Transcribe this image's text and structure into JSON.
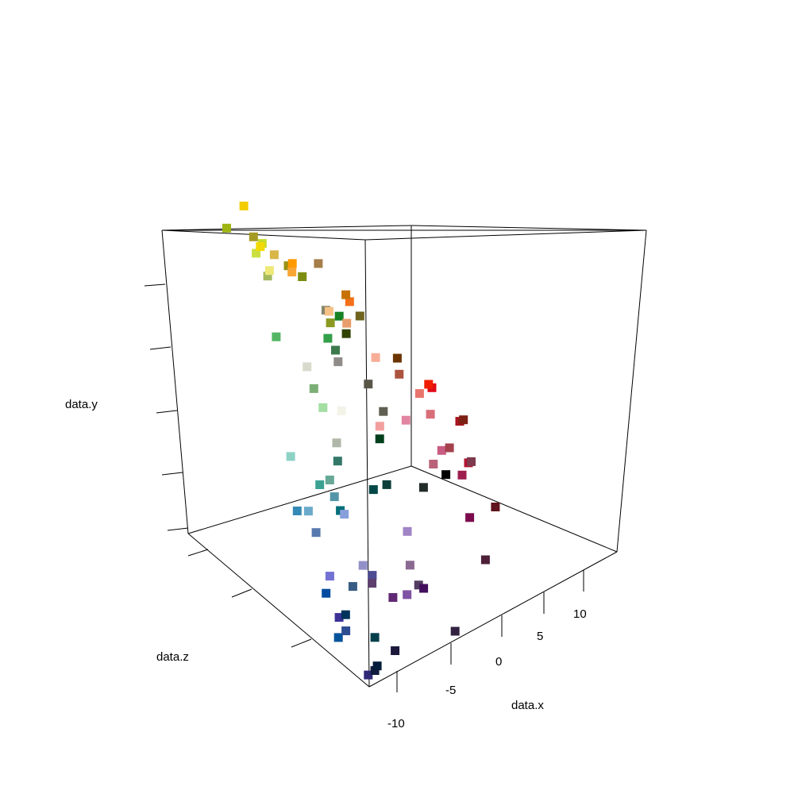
{
  "chart_data": {
    "type": "scatter",
    "projection": "3d",
    "title": "",
    "xlabel": "data.x",
    "ylabel": "data.y",
    "zlabel": "data.z",
    "x_ticks": [
      "-10",
      "-5",
      "0",
      "5",
      "10"
    ],
    "grid": false,
    "legend": "none",
    "background": "#ffffff",
    "points": [
      {
        "x": -2.6,
        "y": 14.5,
        "z": 8.8,
        "color": "#F2CC00"
      },
      {
        "x": -6.0,
        "y": 14.3,
        "z": 6.9,
        "color": "#9EB411"
      },
      {
        "x": -4.3,
        "y": 13.5,
        "z": 4.3,
        "color": "#C5DC28"
      },
      {
        "x": -4.7,
        "y": 13.0,
        "z": 4.6,
        "color": "#CADF40"
      },
      {
        "x": -2.6,
        "y": 13.0,
        "z": 7.5,
        "color": "#A59A25"
      },
      {
        "x": -2.6,
        "y": 12.6,
        "z": 6.6,
        "color": "#F2DA00"
      },
      {
        "x": -5.5,
        "y": 12.3,
        "z": 2.1,
        "color": "#A5BA60"
      },
      {
        "x": -4.4,
        "y": 12.2,
        "z": 3.2,
        "color": "#EEE978"
      },
      {
        "x": -2.0,
        "y": 12.2,
        "z": 5.5,
        "color": "#D8B648"
      },
      {
        "x": -1.3,
        "y": 11.6,
        "z": 4.5,
        "color": "#9A9212"
      },
      {
        "x": -0.6,
        "y": 11.0,
        "z": 3.5,
        "color": "#7D8D11"
      },
      {
        "x": -8.4,
        "y": 10.3,
        "z": -2.6,
        "color": "#53B664"
      },
      {
        "x": 2.7,
        "y": 10.2,
        "z": 8.8,
        "color": "#FE9A00"
      },
      {
        "x": -0.5,
        "y": 9.6,
        "z": 0.5,
        "color": "#88866E"
      },
      {
        "x": 2.0,
        "y": 10.0,
        "z": 8.0,
        "color": "#F8A535"
      },
      {
        "x": 5.5,
        "y": 9.6,
        "z": 8.8,
        "color": "#A67E49"
      },
      {
        "x": 0.0,
        "y": 8.8,
        "z": 0.5,
        "color": "#8B9920"
      },
      {
        "x": 1.5,
        "y": 8.8,
        "z": 2.5,
        "color": "#F6C184"
      },
      {
        "x": -6.2,
        "y": 8.4,
        "z": -4.0,
        "color": "#D8DBCB"
      },
      {
        "x": -1.5,
        "y": 8.5,
        "z": -1.0,
        "color": "#34A04A"
      },
      {
        "x": 2.6,
        "y": 8.3,
        "z": 2.5,
        "color": "#178023"
      },
      {
        "x": -1.0,
        "y": 7.8,
        "z": -1.4,
        "color": "#3C7A4E"
      },
      {
        "x": -7.1,
        "y": 7.7,
        "z": -6.0,
        "color": "#7CAF76"
      },
      {
        "x": 6.6,
        "y": 7.7,
        "z": 6.0,
        "color": "#F47019"
      },
      {
        "x": 7.1,
        "y": 7.8,
        "z": 7.1,
        "color": "#C77200"
      },
      {
        "x": 4.0,
        "y": 7.5,
        "z": 3.2,
        "color": "#E99D6C"
      },
      {
        "x": -1.2,
        "y": 7.3,
        "z": -2.0,
        "color": "#8E8B89"
      },
      {
        "x": 3.3,
        "y": 7.2,
        "z": 2.4,
        "color": "#334300"
      },
      {
        "x": -7.0,
        "y": 6.8,
        "z": -7.1,
        "color": "#A3DEA3"
      },
      {
        "x": 7.4,
        "y": 6.8,
        "z": 5.6,
        "color": "#6F641E"
      },
      {
        "x": -4.5,
        "y": 6.0,
        "z": -6.5,
        "color": "#F4F3E8"
      },
      {
        "x": 6.0,
        "y": 5.4,
        "z": 1.8,
        "color": "#F8AD97"
      },
      {
        "x": 2.5,
        "y": 5.2,
        "z": -1.5,
        "color": "#585747"
      },
      {
        "x": -11.6,
        "y": 5.3,
        "z": -8.5,
        "color": "#8ED2C6"
      },
      {
        "x": -6.9,
        "y": 5.1,
        "z": -8.8,
        "color": "#AFB7A9"
      },
      {
        "x": 9.5,
        "y": 4.4,
        "z": 3.2,
        "color": "#6B3500"
      },
      {
        "x": 7.9,
        "y": 4.2,
        "z": 1.0,
        "color": "#AC543E"
      },
      {
        "x": 2.5,
        "y": 4.0,
        "z": -3.5,
        "color": "#5F5F52"
      },
      {
        "x": -10.5,
        "y": 3.9,
        "z": -11.0,
        "color": "#3BA293"
      },
      {
        "x": -6.6,
        "y": 4.0,
        "z": -8.6,
        "color": "#337868"
      },
      {
        "x": 7.8,
        "y": 3.6,
        "z": -1.8,
        "color": "#E8756C"
      },
      {
        "x": -8.6,
        "y": 3.6,
        "z": -10.0,
        "color": "#65A996"
      },
      {
        "x": 1.3,
        "y": 3.6,
        "z": -4.5,
        "color": "#F39E9E"
      },
      {
        "x": -9.4,
        "y": 3.1,
        "z": -11.6,
        "color": "#5496A7"
      },
      {
        "x": 4.7,
        "y": 3.1,
        "z": -3.8,
        "color": "#E285A2"
      },
      {
        "x": 10.7,
        "y": 3.0,
        "z": 0.1,
        "color": "#E00B17"
      },
      {
        "x": 11.0,
        "y": 3.0,
        "z": 0.9,
        "color": "#EF1E00"
      },
      {
        "x": 1.3,
        "y": 2.9,
        "z": -4.5,
        "color": "#003F1C"
      },
      {
        "x": 8.0,
        "y": 2.6,
        "z": -3.0,
        "color": "#D76E78"
      },
      {
        "x": -12.5,
        "y": 2.8,
        "z": -10.5,
        "color": "#358AB5"
      },
      {
        "x": -11.7,
        "y": 2.7,
        "z": -11.0,
        "color": "#6BAACB"
      },
      {
        "x": -9.5,
        "y": 2.5,
        "z": -12.5,
        "color": "#016E79"
      },
      {
        "x": -9.3,
        "y": 2.3,
        "z": -12.8,
        "color": "#87A0DC"
      },
      {
        "x": -4.7,
        "y": 2.4,
        "z": -11.0,
        "color": "#004847"
      },
      {
        "x": -3.1,
        "y": 2.3,
        "z": -10.8,
        "color": "#0D3F3C"
      },
      {
        "x": -12.5,
        "y": 2.0,
        "z": -13.0,
        "color": "#587AAF"
      },
      {
        "x": 12.0,
        "y": 1.2,
        "z": -2.0,
        "color": "#A5141F"
      },
      {
        "x": 12.4,
        "y": 1.2,
        "z": -2.0,
        "color": "#7D2014"
      },
      {
        "x": 7.6,
        "y": 1.0,
        "z": -5.0,
        "color": "#C95C82"
      },
      {
        "x": 8.6,
        "y": 0.9,
        "z": -4.8,
        "color": "#A4414D"
      },
      {
        "x": 6.3,
        "y": 0.6,
        "z": -5.5,
        "color": "#BA627A"
      },
      {
        "x": 3.6,
        "y": 0.2,
        "z": -7.5,
        "color": "#222C28"
      },
      {
        "x": 7.0,
        "y": 0.0,
        "z": -6.3,
        "color": "#000000"
      },
      {
        "x": 10.5,
        "y": -0.3,
        "z": -5.0,
        "color": "#B01430"
      },
      {
        "x": 10.8,
        "y": -0.3,
        "z": -5.0,
        "color": "#7D3A4C"
      },
      {
        "x": 9.0,
        "y": -0.5,
        "z": -6.0,
        "color": "#9E1F4F"
      },
      {
        "x": -11.8,
        "y": -0.4,
        "z": -14.0,
        "color": "#7371D4"
      },
      {
        "x": -7.4,
        "y": -0.9,
        "z": -13.0,
        "color": "#9290C8"
      },
      {
        "x": -1.0,
        "y": -0.7,
        "z": -11.0,
        "color": "#A084C6"
      },
      {
        "x": -12.6,
        "y": -1.1,
        "z": -14.5,
        "color": "#004B9F"
      },
      {
        "x": -9.3,
        "y": -1.5,
        "z": -14.0,
        "color": "#385D84"
      },
      {
        "x": -6.8,
        "y": -1.5,
        "z": -13.5,
        "color": "#4D4B91"
      },
      {
        "x": -6.9,
        "y": -1.9,
        "z": -13.6,
        "color": "#5F3F6D"
      },
      {
        "x": -1.5,
        "y": -2.3,
        "z": -12.0,
        "color": "#8A6A92"
      },
      {
        "x": 7.8,
        "y": -2.2,
        "z": -8.5,
        "color": "#7B0B4D"
      },
      {
        "x": 11.8,
        "y": -2.7,
        "z": -7.0,
        "color": "#61141E"
      },
      {
        "x": -12.0,
        "y": -2.4,
        "z": -15.5,
        "color": "#3B3196"
      },
      {
        "x": -11.3,
        "y": -2.4,
        "z": -15.5,
        "color": "#00335A"
      },
      {
        "x": -4.3,
        "y": -3.3,
        "z": -13.2,
        "color": "#602874"
      },
      {
        "x": -12.3,
        "y": -3.4,
        "z": -15.8,
        "color": "#00539A"
      },
      {
        "x": -11.5,
        "y": -3.2,
        "z": -15.8,
        "color": "#2D4D92"
      },
      {
        "x": -2.2,
        "y": -3.7,
        "z": -12.5,
        "color": "#8053A4"
      },
      {
        "x": -0.8,
        "y": -3.5,
        "z": -12.3,
        "color": "#523D60"
      },
      {
        "x": 0.0,
        "y": -3.9,
        "z": -12.0,
        "color": "#430F5C"
      },
      {
        "x": -7.7,
        "y": -4.5,
        "z": -15.0,
        "color": "#033F4B"
      },
      {
        "x": 8.3,
        "y": -4.4,
        "z": -10.0,
        "color": "#4D2038"
      },
      {
        "x": -9.2,
        "y": -6.1,
        "z": -16.0,
        "color": "#302977"
      },
      {
        "x": -8.5,
        "y": -6.0,
        "z": -16.0,
        "color": "#0F1A3E"
      },
      {
        "x": -8.0,
        "y": -5.9,
        "z": -15.7,
        "color": "#001C3B"
      },
      {
        "x": -5.5,
        "y": -5.7,
        "z": -15.0,
        "color": "#1B1A3C"
      },
      {
        "x": 2.2,
        "y": -6.5,
        "z": -13.5,
        "color": "#322141"
      }
    ]
  }
}
